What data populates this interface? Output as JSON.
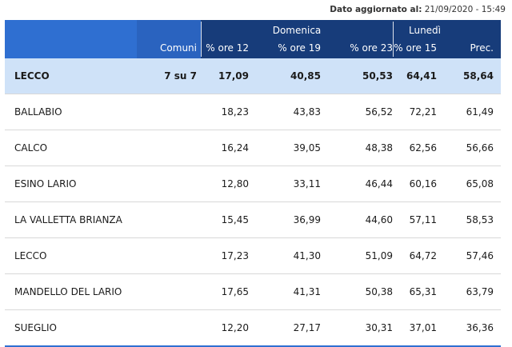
{
  "updated": {
    "label": "Dato aggiornato al:",
    "value": "21/09/2020 - 15:49"
  },
  "header": {
    "groups": {
      "domenica": "Domenica",
      "lunedi": "Lunedì"
    },
    "columns": {
      "comuni": "Comuni",
      "o12": "% ore 12",
      "o19": "% ore 19",
      "o23": "% ore 23",
      "o15": "% ore 15",
      "prec": "Prec."
    }
  },
  "total": {
    "name": "LECCO",
    "comuni": "7 su 7",
    "o12": "17,09",
    "o19": "40,85",
    "o23": "50,53",
    "o15": "64,41",
    "prec": "58,64"
  },
  "rows": [
    {
      "name": "BALLABIO",
      "o12": "18,23",
      "o19": "43,83",
      "o23": "56,52",
      "o15": "72,21",
      "prec": "61,49"
    },
    {
      "name": "CALCO",
      "o12": "16,24",
      "o19": "39,05",
      "o23": "48,38",
      "o15": "62,56",
      "prec": "56,66"
    },
    {
      "name": "ESINO LARIO",
      "o12": "12,80",
      "o19": "33,11",
      "o23": "46,44",
      "o15": "60,16",
      "prec": "65,08"
    },
    {
      "name": "LA VALLETTA BRIANZA",
      "o12": "15,45",
      "o19": "36,99",
      "o23": "44,60",
      "o15": "57,11",
      "prec": "58,53"
    },
    {
      "name": "LECCO",
      "o12": "17,23",
      "o19": "41,30",
      "o23": "51,09",
      "o15": "64,72",
      "prec": "57,46"
    },
    {
      "name": "MANDELLO DEL LARIO",
      "o12": "17,65",
      "o19": "41,31",
      "o23": "50,38",
      "o15": "65,31",
      "prec": "63,79"
    },
    {
      "name": "SUEGLIO",
      "o12": "12,20",
      "o19": "27,17",
      "o23": "30,31",
      "o15": "37,01",
      "prec": "36,36"
    }
  ]
}
